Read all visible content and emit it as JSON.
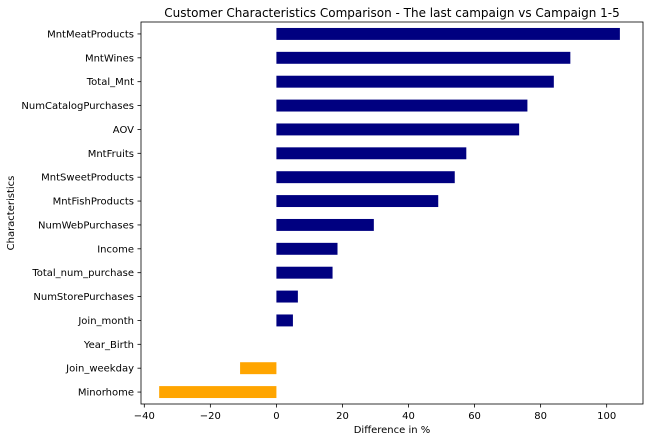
{
  "chart_data": {
    "type": "bar",
    "orientation": "horizontal",
    "title": "Customer Characteristics Comparison - The last campaign vs Campaign 1-5",
    "xlabel": "Difference in %",
    "ylabel": "Characteristics",
    "xlim": [
      -41,
      111
    ],
    "xticks": [
      -40,
      -20,
      0,
      20,
      40,
      60,
      80,
      100
    ],
    "xtick_labels": [
      "−40",
      "−20",
      "0",
      "20",
      "40",
      "60",
      "80",
      "100"
    ],
    "grid": false,
    "legend": "none",
    "categories": [
      "MntMeatProducts",
      "MntWines",
      "Total_Mnt",
      "NumCatalogPurchases",
      "AOV",
      "MntFruits",
      "MntSweetProducts",
      "MntFishProducts",
      "NumWebPurchases",
      "Income",
      "Total_num_purchase",
      "NumStorePurchases",
      "Join_month",
      "Year_Birth",
      "Join_weekday",
      "Minorhome"
    ],
    "values": [
      104,
      89,
      84,
      76,
      73.5,
      57.5,
      54,
      49,
      29.5,
      18.5,
      17,
      6.5,
      5,
      0,
      -11,
      -35.5
    ],
    "colors": {
      "positive": "#000080",
      "negative": "#FFA500"
    }
  }
}
